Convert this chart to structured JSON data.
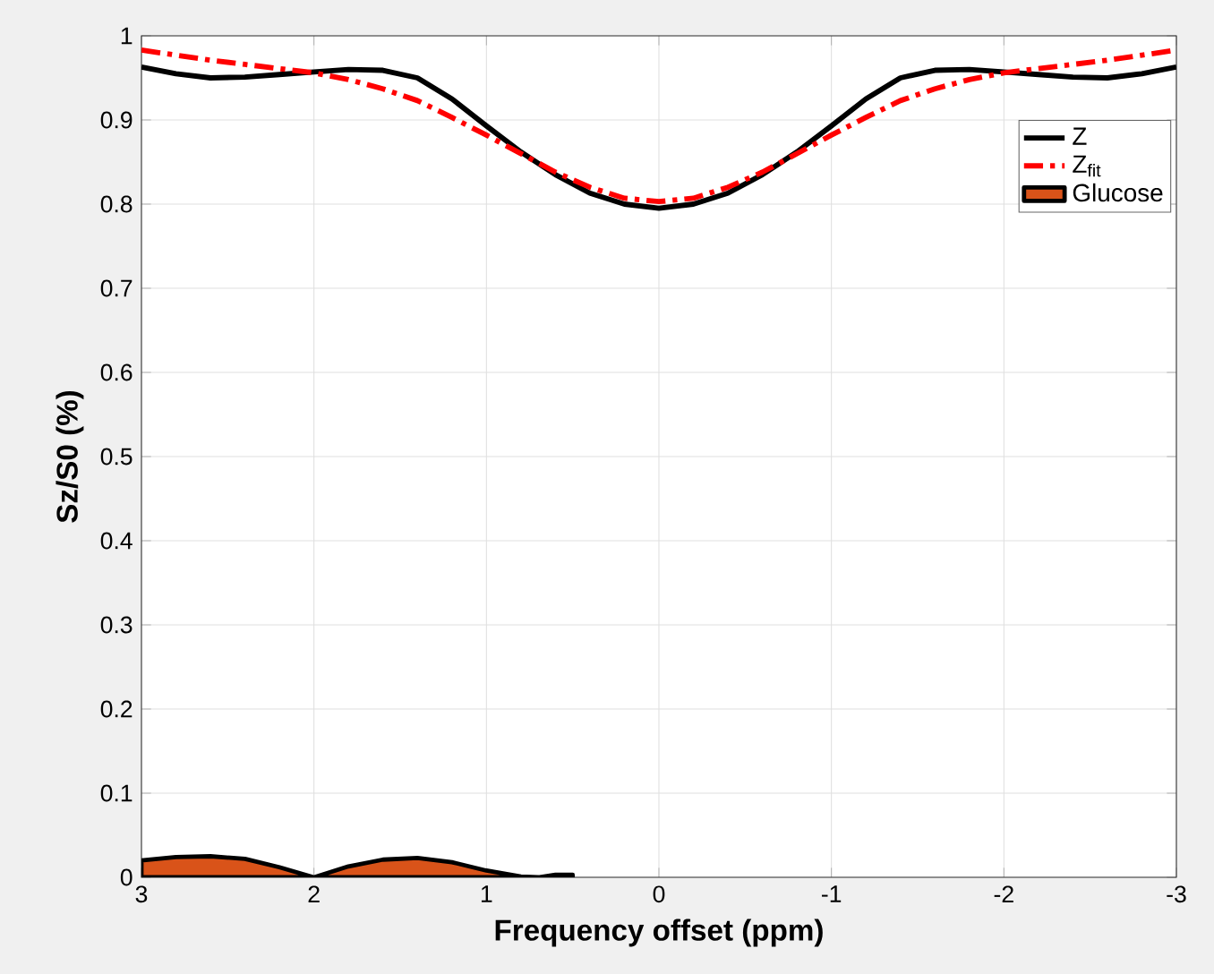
{
  "chart_data": {
    "type": "line",
    "xlabel": "Frequency offset (ppm)",
    "ylabel": "Sz/S0 (%)",
    "xlim": [
      3,
      -3
    ],
    "xticks": [
      3,
      2,
      1,
      0,
      -1,
      -2,
      -3
    ],
    "ylim": [
      0,
      1
    ],
    "yticks": [
      0,
      0.1,
      0.2,
      0.3,
      0.4,
      0.5,
      0.6,
      0.7,
      0.8,
      0.9,
      1
    ],
    "grid": true,
    "legend": "top right",
    "marker": "none",
    "series": [
      {
        "name": "Z",
        "color": "#000000",
        "line_style": "solid",
        "x": [
          3,
          2.8,
          2.6,
          2.4,
          2.2,
          2,
          1.8,
          1.6,
          1.4,
          1.2,
          1,
          0.8,
          0.6,
          0.4,
          0.2,
          0,
          -0.2,
          -0.4,
          -0.6,
          -0.8,
          -1,
          -1.2,
          -1.4,
          -1.6,
          -1.8,
          -2,
          -2.2,
          -2.4,
          -2.6,
          -2.8,
          -3
        ],
        "values": [
          0.963,
          0.955,
          0.95,
          0.951,
          0.954,
          0.957,
          0.96,
          0.959,
          0.95,
          0.925,
          0.893,
          0.862,
          0.835,
          0.813,
          0.8,
          0.795,
          0.8,
          0.813,
          0.835,
          0.862,
          0.893,
          0.925,
          0.95,
          0.959,
          0.96,
          0.957,
          0.954,
          0.951,
          0.95,
          0.955,
          0.963
        ]
      },
      {
        "name": "Z$_{fit}$",
        "color": "#ff0000",
        "line_style": "dashed",
        "x": [
          3,
          2.8,
          2.6,
          2.4,
          2.2,
          2,
          1.8,
          1.6,
          1.4,
          1.2,
          1,
          0.8,
          0.6,
          0.4,
          0.2,
          0,
          -0.2,
          -0.4,
          -0.6,
          -0.8,
          -1,
          -1.2,
          -1.4,
          -1.6,
          -1.8,
          -2,
          -2.2,
          -2.4,
          -2.6,
          -2.8,
          -3
        ],
        "values": [
          0.983,
          0.977,
          0.971,
          0.966,
          0.961,
          0.956,
          0.948,
          0.937,
          0.923,
          0.903,
          0.882,
          0.86,
          0.838,
          0.82,
          0.807,
          0.803,
          0.807,
          0.82,
          0.838,
          0.86,
          0.882,
          0.903,
          0.923,
          0.937,
          0.948,
          0.956,
          0.961,
          0.966,
          0.971,
          0.977,
          0.983
        ]
      },
      {
        "name": "Glucose",
        "type": "area",
        "color": "#d95319",
        "x": [
          3,
          2.8,
          2.6,
          2.4,
          2.2,
          2,
          1.8,
          1.6,
          1.4,
          1.2,
          1,
          0.8,
          0.7,
          0.6,
          0.5
        ],
        "values": [
          0.02,
          0.024,
          0.025,
          0.022,
          0.012,
          0,
          0.013,
          0.021,
          0.023,
          0.018,
          0.008,
          0.001,
          0,
          0.003,
          0.003
        ]
      }
    ]
  }
}
